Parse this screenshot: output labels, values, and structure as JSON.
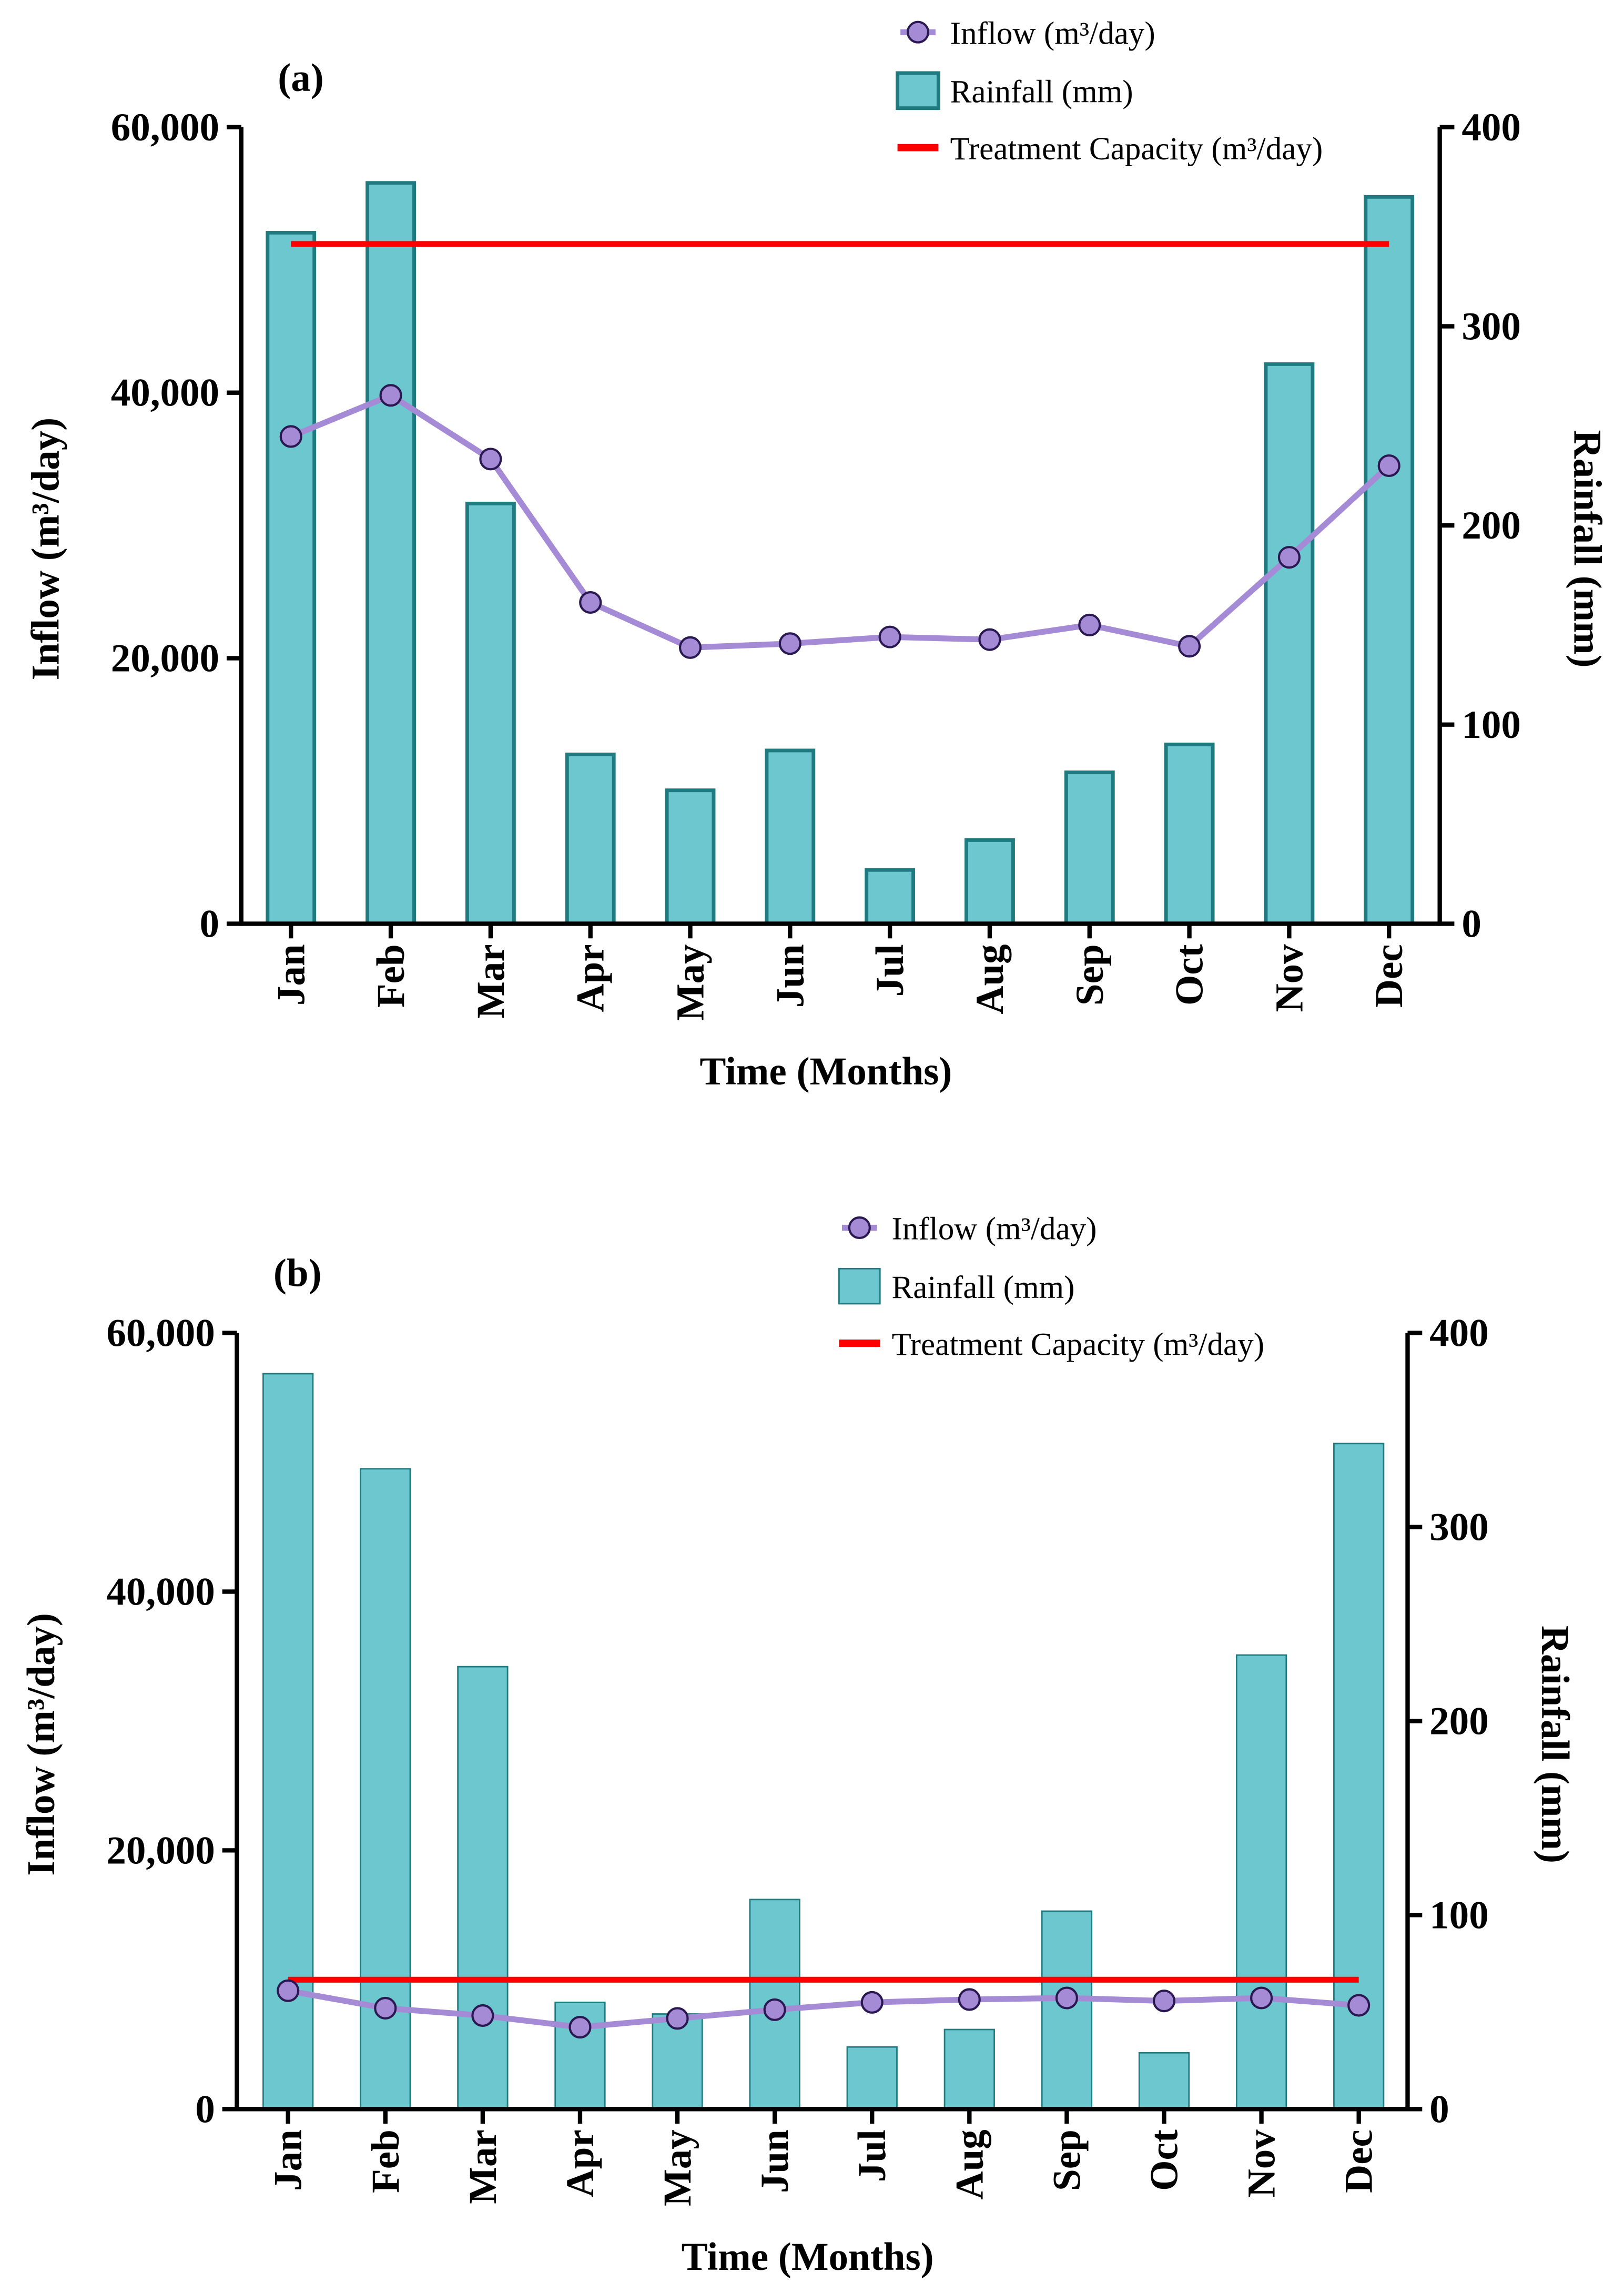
{
  "colors": {
    "bar_fill": "#6cc8ce",
    "bar_stroke": "#1f7b80",
    "inflow_line": "#a58ad6",
    "inflow_marker_stroke": "#2a1850",
    "capacity": "#ff0000"
  },
  "chart_data": [
    {
      "type": "bar",
      "panel_label": "(a)",
      "categories": [
        "Jan",
        "Feb",
        "Mar",
        "Apr",
        "May",
        "Jun",
        "Jul",
        "Aug",
        "Sep",
        "Oct",
        "Nov",
        "Dec"
      ],
      "xlabel": "Time (Months)",
      "ylabel": "Inflow (m³/day)",
      "ylabel_right": "Rainfall (mm)",
      "ylim": [
        0,
        60000
      ],
      "ylim_right": [
        0,
        400
      ],
      "yticks": [
        "0",
        "20,000",
        "40,000",
        "60,000"
      ],
      "yticks_right": [
        "0",
        "100",
        "200",
        "300",
        "400"
      ],
      "legend_position": "top-right",
      "series": [
        {
          "name": "Inflow (m³/day)",
          "kind": "line",
          "axis": "left",
          "values": [
            36700,
            39800,
            35000,
            24200,
            20800,
            21100,
            21600,
            21400,
            22500,
            20900,
            27600,
            34500
          ]
        },
        {
          "name": "Rainfall (mm)",
          "kind": "bar",
          "axis": "right",
          "values": [
            347,
            372,
            211,
            85,
            67,
            87,
            27,
            42,
            76,
            90,
            281,
            365
          ]
        },
        {
          "name": "Treatment Capacity (m³/day)",
          "kind": "hline",
          "axis": "left",
          "value": 51200
        }
      ]
    },
    {
      "type": "bar",
      "panel_label": "(b)",
      "categories": [
        "Jan",
        "Feb",
        "Mar",
        "Apr",
        "May",
        "Jun",
        "Jul",
        "Aug",
        "Sep",
        "Oct",
        "Nov",
        "Dec"
      ],
      "xlabel": "Time (Months)",
      "ylabel": "Inflow (m³/day)",
      "ylabel_right": "Rainfall (mm)",
      "ylim": [
        0,
        60000
      ],
      "ylim_right": [
        0,
        400
      ],
      "yticks": [
        "0",
        "20,000",
        "40,000",
        "60,000"
      ],
      "yticks_right": [
        "0",
        "100",
        "200",
        "300",
        "400"
      ],
      "legend_position": "top-right",
      "series": [
        {
          "name": "Inflow (m³/day)",
          "kind": "line",
          "axis": "left",
          "values": [
            9150,
            7800,
            7230,
            6330,
            7010,
            7680,
            8250,
            8470,
            8590,
            8360,
            8590,
            8020
          ]
        },
        {
          "name": "Rainfall (mm)",
          "kind": "bar",
          "axis": "right",
          "values": [
            379,
            330,
            228,
            55,
            49,
            108,
            32,
            41,
            102,
            29,
            234,
            343
          ]
        },
        {
          "name": "Treatment Capacity (m³/day)",
          "kind": "hline",
          "axis": "left",
          "value": 10000
        }
      ]
    }
  ]
}
